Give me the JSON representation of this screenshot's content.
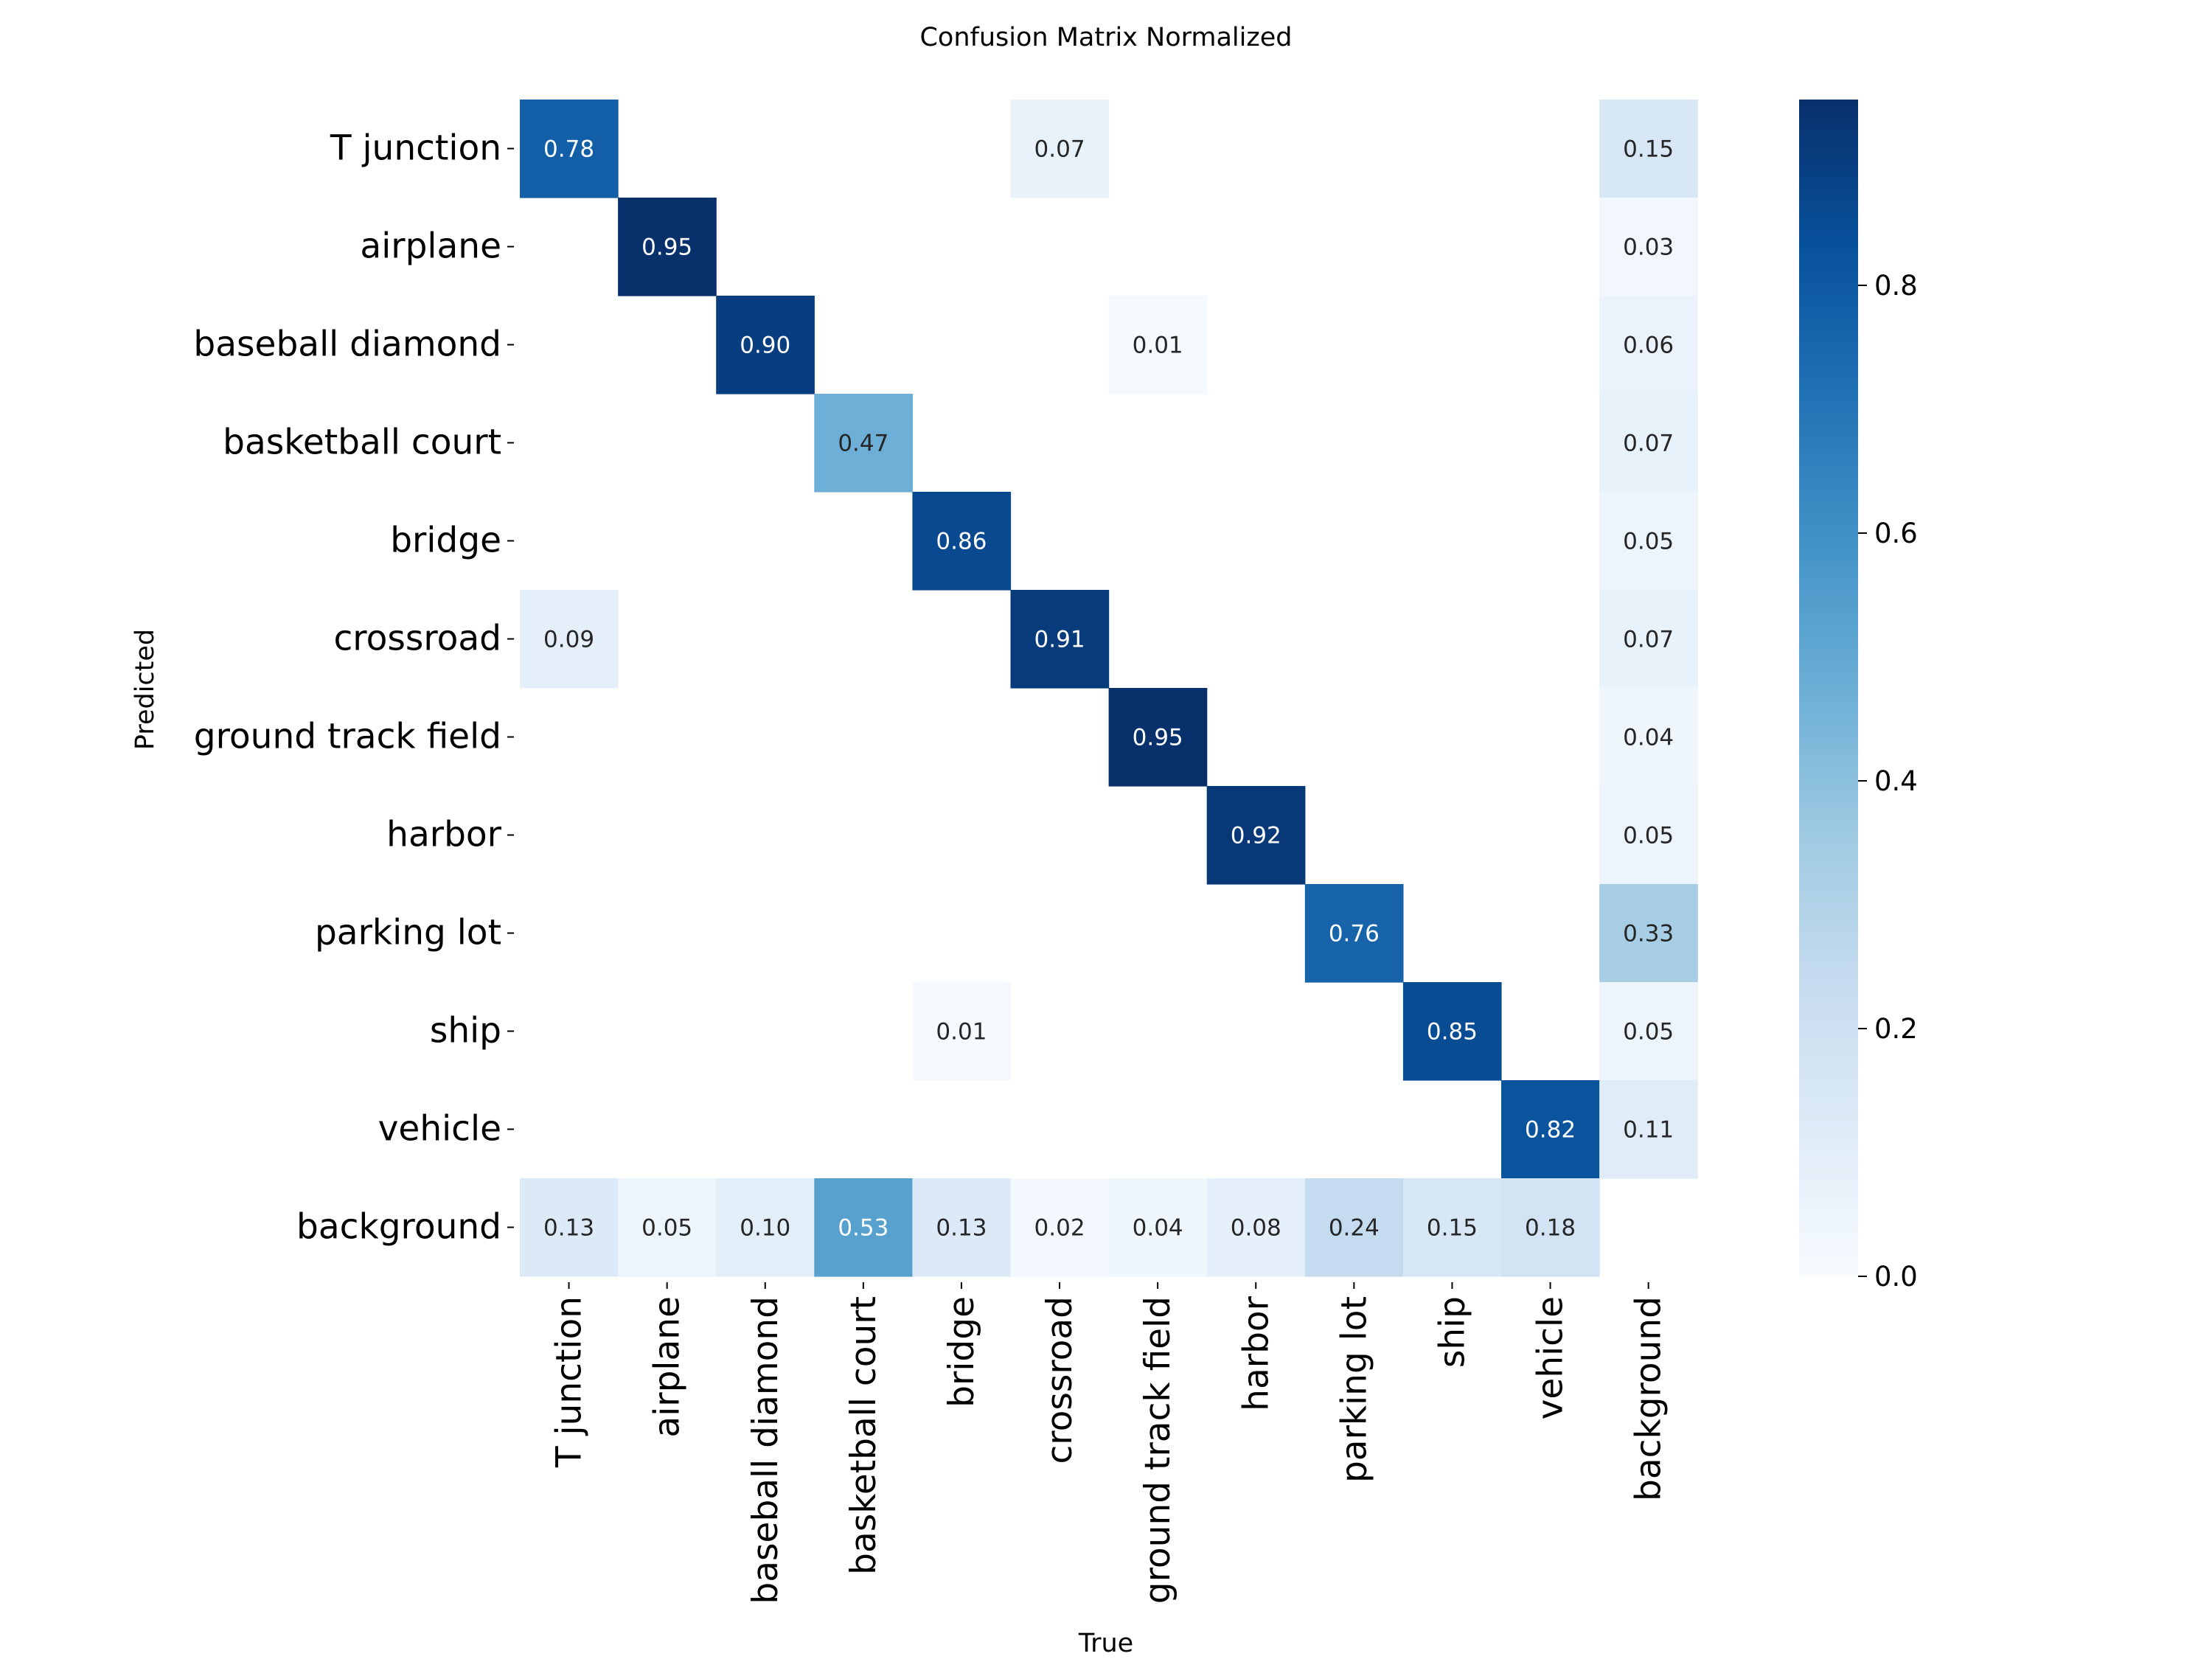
{
  "chart_data": {
    "type": "heatmap",
    "title": "Confusion Matrix Normalized",
    "xlabel": "True",
    "ylabel": "Predicted",
    "rows": [
      "T junction",
      "airplane",
      "baseball diamond",
      "basketball court",
      "bridge",
      "crossroad",
      "ground track field",
      "harbor",
      "parking lot",
      "ship",
      "vehicle",
      "background"
    ],
    "columns": [
      "T junction",
      "airplane",
      "baseball diamond",
      "basketball court",
      "bridge",
      "crossroad",
      "ground track field",
      "harbor",
      "parking lot",
      "ship",
      "vehicle",
      "background"
    ],
    "values": [
      [
        0.78,
        null,
        null,
        null,
        null,
        0.07,
        null,
        null,
        null,
        null,
        null,
        0.15
      ],
      [
        null,
        0.95,
        null,
        null,
        null,
        null,
        null,
        null,
        null,
        null,
        null,
        0.03
      ],
      [
        null,
        null,
        0.9,
        null,
        null,
        null,
        0.01,
        null,
        null,
        null,
        null,
        0.06
      ],
      [
        null,
        null,
        null,
        0.47,
        null,
        null,
        null,
        null,
        null,
        null,
        null,
        0.07
      ],
      [
        null,
        null,
        null,
        null,
        0.86,
        null,
        null,
        null,
        null,
        null,
        null,
        0.05
      ],
      [
        0.09,
        null,
        null,
        null,
        null,
        0.91,
        null,
        null,
        null,
        null,
        null,
        0.07
      ],
      [
        null,
        null,
        null,
        null,
        null,
        null,
        0.95,
        null,
        null,
        null,
        null,
        0.04
      ],
      [
        null,
        null,
        null,
        null,
        null,
        null,
        null,
        0.92,
        null,
        null,
        null,
        0.05
      ],
      [
        null,
        null,
        null,
        null,
        null,
        null,
        null,
        null,
        0.76,
        null,
        null,
        0.33
      ],
      [
        null,
        null,
        null,
        null,
        0.01,
        null,
        null,
        null,
        null,
        0.85,
        null,
        0.05
      ],
      [
        null,
        null,
        null,
        null,
        null,
        null,
        null,
        null,
        null,
        null,
        0.82,
        0.11
      ],
      [
        0.13,
        0.05,
        0.1,
        0.53,
        0.13,
        0.02,
        0.04,
        0.08,
        0.24,
        0.15,
        0.18,
        null
      ]
    ],
    "colormap": "Blues",
    "vmin": 0.0,
    "vmax": 0.95,
    "colorbar_ticks": [
      "0.0",
      "0.2",
      "0.4",
      "0.6",
      "0.8"
    ],
    "colorbar_tick_values": [
      0.0,
      0.2,
      0.4,
      0.6,
      0.8
    ],
    "colorbar_placement": "right",
    "light_text_color": "#ffffff",
    "dark_text_color": "#262626"
  }
}
